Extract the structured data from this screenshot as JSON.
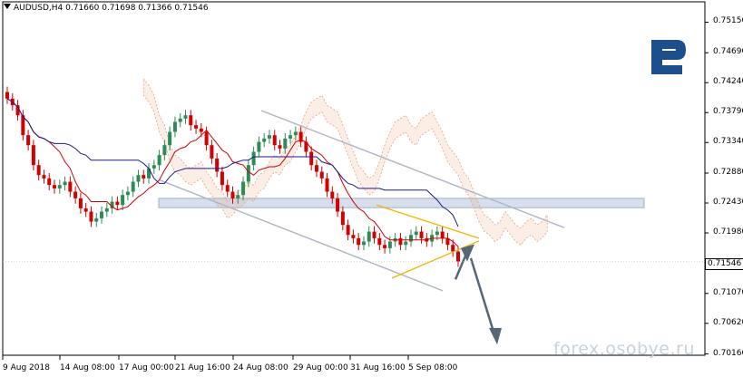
{
  "header": {
    "symbol": "AUDUSD,H4",
    "ohlc": "0.71660 0.71698 0.71366 0.71546"
  },
  "current_price": "0.71546",
  "watermark": "forex.osobye.ru",
  "colors": {
    "bull_candle": "#2e8b57",
    "bear_candle": "#d40000",
    "tenkan": "#d40000",
    "kijun": "#1a1a8c",
    "cloud": "#e8a07a",
    "channel": "#b0b8c8",
    "triangle": "#f0b400",
    "arrow": "#556677",
    "zone": "#c8d4e4",
    "logo": "#1c4f8c"
  },
  "chart_data": {
    "type": "candlestick",
    "y_ticks": [
      "0.75150",
      "0.74690",
      "0.74240",
      "0.73790",
      "0.73340",
      "0.72880",
      "0.72430",
      "0.71980",
      "0.71546",
      "0.71070",
      "0.70620",
      "0.70160"
    ],
    "x_ticks": [
      "9 Aug 2018",
      "14 Aug 08:00",
      "17 Aug 00:00",
      "21 Aug 16:00",
      "24 Aug 08:00",
      "29 Aug 00:00",
      "31 Aug 16:00",
      "5 Sep 08:00"
    ],
    "ylim": [
      0.7014,
      0.7532
    ],
    "close_series": [
      0.74,
      0.739,
      0.7375,
      0.7345,
      0.733,
      0.73,
      0.7285,
      0.728,
      0.727,
      0.7265,
      0.727,
      0.7275,
      0.726,
      0.725,
      0.7235,
      0.723,
      0.7215,
      0.722,
      0.723,
      0.7235,
      0.7245,
      0.724,
      0.7255,
      0.726,
      0.7275,
      0.7285,
      0.728,
      0.7295,
      0.73,
      0.7315,
      0.733,
      0.735,
      0.7365,
      0.737,
      0.7375,
      0.736,
      0.7355,
      0.735,
      0.733,
      0.731,
      0.729,
      0.727,
      0.726,
      0.725,
      0.7255,
      0.7275,
      0.73,
      0.732,
      0.7335,
      0.734,
      0.7345,
      0.733,
      0.7325,
      0.734,
      0.7345,
      0.735,
      0.7335,
      0.732,
      0.73,
      0.729,
      0.728,
      0.726,
      0.725,
      0.723,
      0.721,
      0.7195,
      0.719,
      0.718,
      0.7185,
      0.72,
      0.719,
      0.718,
      0.7175,
      0.7185,
      0.719,
      0.718,
      0.7185,
      0.7195,
      0.72,
      0.719,
      0.7185,
      0.7195,
      0.72,
      0.719,
      0.718,
      0.717,
      0.7155
    ]
  }
}
